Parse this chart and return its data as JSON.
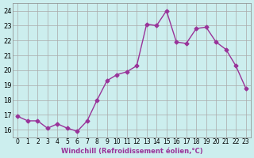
{
  "x": [
    0,
    1,
    2,
    3,
    4,
    5,
    6,
    7,
    8,
    9,
    10,
    11,
    12,
    13,
    14,
    15,
    16,
    17,
    18,
    19,
    20,
    21,
    22,
    23
  ],
  "y": [
    16.9,
    16.6,
    16.6,
    16.1,
    16.4,
    16.1,
    15.9,
    16.6,
    18.0,
    19.3,
    19.7,
    19.9,
    20.3,
    23.1,
    23.0,
    24.0,
    21.9,
    21.8,
    22.8,
    22.9,
    21.9,
    21.4,
    20.3,
    18.8
  ],
  "line_color": "#993399",
  "marker": "D",
  "markersize": 2.5,
  "linewidth": 1.0,
  "bg_color": "#cceeee",
  "grid_color": "#aaaaaa",
  "xlabel": "Windchill (Refroidissement éolien,°C)",
  "xlim": [
    -0.5,
    23.5
  ],
  "ylim": [
    15.5,
    24.5
  ],
  "yticks": [
    16,
    17,
    18,
    19,
    20,
    21,
    22,
    23,
    24
  ],
  "xticks": [
    0,
    1,
    2,
    3,
    4,
    5,
    6,
    7,
    8,
    9,
    10,
    11,
    12,
    13,
    14,
    15,
    16,
    17,
    18,
    19,
    20,
    21,
    22,
    23
  ]
}
